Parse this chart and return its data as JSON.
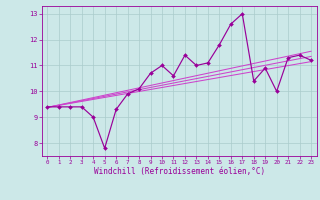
{
  "x_data": [
    0,
    1,
    2,
    3,
    4,
    5,
    6,
    7,
    8,
    9,
    10,
    11,
    12,
    13,
    14,
    15,
    16,
    17,
    18,
    19,
    20,
    21,
    22,
    23
  ],
  "y_main": [
    9.4,
    9.4,
    9.4,
    9.4,
    9.0,
    7.8,
    9.3,
    9.9,
    10.1,
    10.7,
    11.0,
    10.6,
    11.4,
    11.0,
    11.1,
    11.8,
    12.6,
    13.0,
    10.4,
    10.9,
    10.0,
    11.3,
    11.4,
    11.2
  ],
  "line_color": "#990099",
  "trend_color": "#cc44cc",
  "bg_color": "#cce8e8",
  "grid_color": "#aacccc",
  "xlabel": "Windchill (Refroidissement éolien,°C)",
  "xlim": [
    -0.5,
    23.5
  ],
  "ylim": [
    7.5,
    13.3
  ],
  "yticks": [
    8,
    9,
    10,
    11,
    12,
    13
  ],
  "xticks": [
    0,
    1,
    2,
    3,
    4,
    5,
    6,
    7,
    8,
    9,
    10,
    11,
    12,
    13,
    14,
    15,
    16,
    17,
    18,
    19,
    20,
    21,
    22,
    23
  ],
  "trend_lines": [
    {
      "x0": 0,
      "y0": 9.38,
      "x1": 23,
      "y1": 11.15
    },
    {
      "x0": 0,
      "y0": 9.38,
      "x1": 23,
      "y1": 11.35
    },
    {
      "x0": 0,
      "y0": 9.38,
      "x1": 23,
      "y1": 11.55
    }
  ]
}
